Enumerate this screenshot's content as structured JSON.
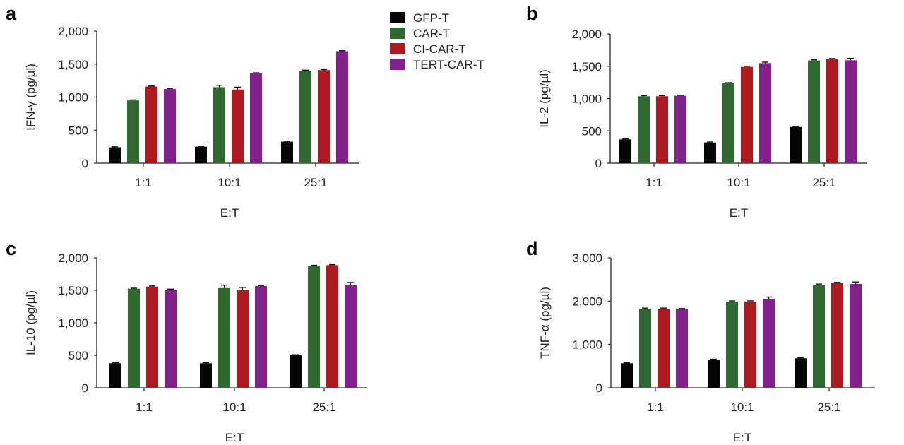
{
  "legend": {
    "items": [
      {
        "name": "GFP-T",
        "color": "#050505"
      },
      {
        "name": "CAR-T",
        "color": "#2e6a30"
      },
      {
        "name": "CI-CAR-T",
        "color": "#ae1a1f"
      },
      {
        "name": "TERT-CAR-T",
        "color": "#82208c"
      }
    ]
  },
  "chart_data": [
    {
      "panel": "a",
      "type": "bar",
      "xlabel": "E:T",
      "ylabel": "IFN-γ (pg/µl)",
      "categories": [
        "1:1",
        "10:1",
        "25:1"
      ],
      "ylim": [
        0,
        2000
      ],
      "yticks": [
        0,
        500,
        1000,
        1500,
        2000
      ],
      "ytick_labels": [
        "0",
        "500",
        "1,000",
        "1,500",
        "2,000"
      ],
      "series": [
        {
          "name": "GFP-T",
          "values": [
            240,
            250,
            325
          ],
          "errors": [
            8,
            8,
            8
          ]
        },
        {
          "name": "CAR-T",
          "values": [
            950,
            1150,
            1400
          ],
          "errors": [
            8,
            30,
            8
          ]
        },
        {
          "name": "CI-CAR-T",
          "values": [
            1160,
            1115,
            1410
          ],
          "errors": [
            8,
            35,
            8
          ]
        },
        {
          "name": "TERT-CAR-T",
          "values": [
            1122,
            1360,
            1695
          ],
          "errors": [
            8,
            8,
            8
          ]
        }
      ]
    },
    {
      "panel": "b",
      "type": "bar",
      "xlabel": "E:T",
      "ylabel": "IL-2 (pg/µl)",
      "categories": [
        "1:1",
        "10:1",
        "25:1"
      ],
      "ylim": [
        0,
        2000
      ],
      "yticks": [
        0,
        500,
        1000,
        1500,
        2000
      ],
      "ytick_labels": [
        "0",
        "500",
        "1,000",
        "1,500",
        "2,000"
      ],
      "series": [
        {
          "name": "GFP-T",
          "values": [
            368,
            320,
            560
          ],
          "errors": [
            8,
            8,
            8
          ]
        },
        {
          "name": "CAR-T",
          "values": [
            1035,
            1235,
            1588
          ],
          "errors": [
            10,
            10,
            10
          ]
        },
        {
          "name": "CI-CAR-T",
          "values": [
            1035,
            1490,
            1610
          ],
          "errors": [
            10,
            10,
            8
          ]
        },
        {
          "name": "TERT-CAR-T",
          "values": [
            1042,
            1548,
            1592
          ],
          "errors": [
            8,
            15,
            30
          ]
        }
      ]
    },
    {
      "panel": "c",
      "type": "bar",
      "xlabel": "E:T",
      "ylabel": "IL-10 (pg/µl)",
      "categories": [
        "1:1",
        "10:1",
        "25:1"
      ],
      "ylim": [
        0,
        2000
      ],
      "yticks": [
        0,
        500,
        1000,
        1500,
        2000
      ],
      "ytick_labels": [
        "0",
        "500",
        "1,000",
        "1,500",
        "2,000"
      ],
      "series": [
        {
          "name": "GFP-T",
          "values": [
            377,
            377,
            500
          ],
          "errors": [
            8,
            8,
            8
          ]
        },
        {
          "name": "CAR-T",
          "values": [
            1525,
            1535,
            1877
          ],
          "errors": [
            8,
            45,
            8
          ]
        },
        {
          "name": "CI-CAR-T",
          "values": [
            1557,
            1500,
            1887
          ],
          "errors": [
            10,
            45,
            8
          ]
        },
        {
          "name": "TERT-CAR-T",
          "values": [
            1510,
            1565,
            1580
          ],
          "errors": [
            8,
            8,
            40
          ]
        }
      ]
    },
    {
      "panel": "d",
      "type": "bar",
      "xlabel": "E:T",
      "ylabel": "TNF-α (pg/µl)",
      "categories": [
        "1:1",
        "10:1",
        "25:1"
      ],
      "ylim": [
        0,
        3000
      ],
      "yticks": [
        0,
        1000,
        2000,
        3000
      ],
      "ytick_labels": [
        "0",
        "1,000",
        "2,000",
        "3,000"
      ],
      "series": [
        {
          "name": "GFP-T",
          "values": [
            565,
            650,
            680
          ],
          "errors": [
            10,
            10,
            10
          ]
        },
        {
          "name": "CAR-T",
          "values": [
            1825,
            1990,
            2375
          ],
          "errors": [
            15,
            15,
            20
          ]
        },
        {
          "name": "CI-CAR-T",
          "values": [
            1825,
            1990,
            2418
          ],
          "errors": [
            15,
            15,
            15
          ]
        },
        {
          "name": "TERT-CAR-T",
          "values": [
            1820,
            2050,
            2397
          ],
          "errors": [
            10,
            45,
            45
          ]
        }
      ]
    }
  ]
}
